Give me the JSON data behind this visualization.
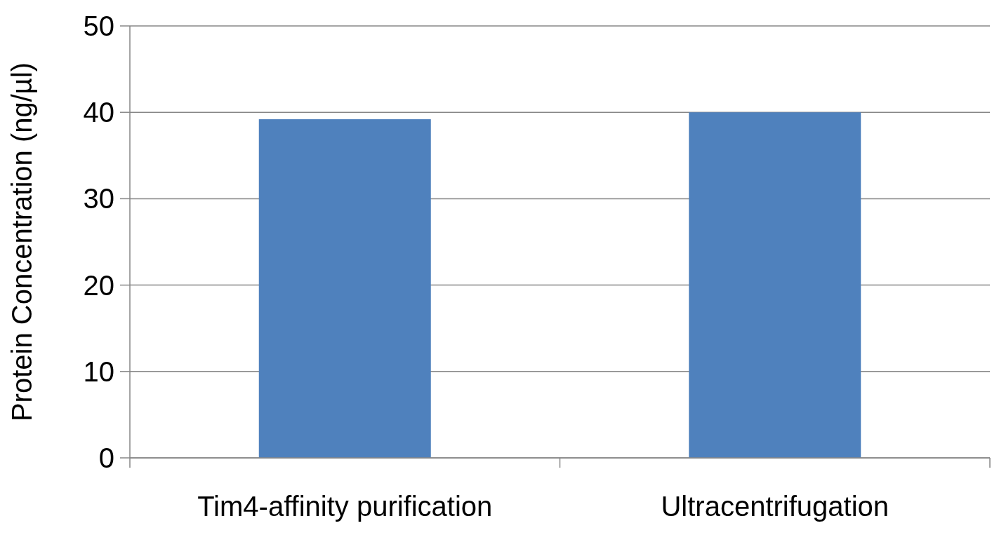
{
  "chart_data": {
    "type": "bar",
    "ylabel": "Protein Concentration (ng/µl)",
    "categories": [
      "Tim4-affinity purification",
      "Ultracentrifugation"
    ],
    "values": [
      39.2,
      40.0
    ],
    "color": "#4f81bd",
    "ylim": [
      0,
      50
    ],
    "yticks": [
      0,
      10,
      20,
      30,
      40,
      50
    ],
    "grid": "y"
  }
}
